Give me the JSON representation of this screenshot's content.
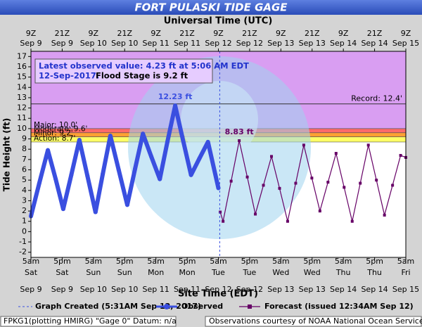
{
  "chart_data": {
    "type": "line",
    "title": "FORT PULASKI TIDE GAGE",
    "top_axis_label": "Universal Time (UTC)",
    "x_label": "Site Time (EDT)",
    "y_label": "Tide Height (ft)",
    "xlim": [
      0,
      144
    ],
    "ylim": [
      -2.5,
      17.5
    ],
    "yticks": [
      -2,
      -1,
      0,
      1,
      2,
      3,
      4,
      5,
      6,
      7,
      8,
      9,
      10,
      11,
      12,
      13,
      14,
      15,
      16,
      17
    ],
    "xticks": [
      {
        "value": 0,
        "label": [
          "5am",
          "Sat",
          "Sep 9"
        ]
      },
      {
        "value": 12,
        "label": [
          "5pm",
          "Sat",
          "Sep 9"
        ]
      },
      {
        "value": 24,
        "label": [
          "5am",
          "Sun",
          "Sep 10"
        ]
      },
      {
        "value": 36,
        "label": [
          "5pm",
          "Sun",
          "Sep 10"
        ]
      },
      {
        "value": 48,
        "label": [
          "5am",
          "Mon",
          "Sep 11"
        ]
      },
      {
        "value": 60,
        "label": [
          "5pm",
          "Mon",
          "Sep 11"
        ]
      },
      {
        "value": 72,
        "label": [
          "5am",
          "Tue",
          "Sep 12"
        ]
      },
      {
        "value": 84,
        "label": [
          "5pm",
          "Tue",
          "Sep 12"
        ]
      },
      {
        "value": 96,
        "label": [
          "5am",
          "Wed",
          "Sep 13"
        ]
      },
      {
        "value": 108,
        "label": [
          "5pm",
          "Wed",
          "Sep 13"
        ]
      },
      {
        "value": 120,
        "label": [
          "5am",
          "Thu",
          "Sep 14"
        ]
      },
      {
        "value": 132,
        "label": [
          "5pm",
          "Thu",
          "Sep 14"
        ]
      },
      {
        "value": 144,
        "label": [
          "5am",
          "Fri",
          "Sep 15"
        ]
      }
    ],
    "top_xticks": [
      {
        "value": 0,
        "label": [
          "9Z",
          "Sep 9"
        ]
      },
      {
        "value": 12,
        "label": [
          "21Z",
          "Sep 9"
        ]
      },
      {
        "value": 24,
        "label": [
          "9Z",
          "Sep 10"
        ]
      },
      {
        "value": 36,
        "label": [
          "21Z",
          "Sep 10"
        ]
      },
      {
        "value": 48,
        "label": [
          "9Z",
          "Sep 11"
        ]
      },
      {
        "value": 60,
        "label": [
          "21Z",
          "Sep 11"
        ]
      },
      {
        "value": 72,
        "label": [
          "9Z",
          "Sep 12"
        ]
      },
      {
        "value": 84,
        "label": [
          "21Z",
          "Sep 12"
        ]
      },
      {
        "value": 96,
        "label": [
          "9Z",
          "Sep 13"
        ]
      },
      {
        "value": 108,
        "label": [
          "21Z",
          "Sep 13"
        ]
      },
      {
        "value": 120,
        "label": [
          "9Z",
          "Sep 14"
        ]
      },
      {
        "value": 132,
        "label": [
          "21Z",
          "Sep 14"
        ]
      },
      {
        "value": 144,
        "label": [
          "9Z",
          "Sep 15"
        ]
      }
    ],
    "stages": [
      {
        "label": "Action: 8.7'",
        "value": 8.7,
        "color": "#ffff66"
      },
      {
        "label": "Minor: 9.2'",
        "value": 9.2,
        "color": "#ffa033"
      },
      {
        "label": "Moderate: 9.6'",
        "value": 9.6,
        "color": "#ff6a6a"
      },
      {
        "label": "Major: 10.0'",
        "value": 10.0,
        "color": "#d99ef2"
      }
    ],
    "record": {
      "label": "Record: 12.4'",
      "value": 12.4
    },
    "info": [
      "Latest observed value: 4.23 ft at 5:06 AM EDT",
      "12-Sep-2017.",
      "Flood Stage is 9.2 ft"
    ],
    "created": {
      "label": "Graph Created (5:31AM Sep 12, 2017)",
      "x": 72.52
    },
    "annotations": [
      {
        "text": "12.23 ft",
        "x": 55.4,
        "y": 12.23
      },
      {
        "text": "8.83 ft",
        "x": 80.0,
        "y": 8.83
      }
    ],
    "series": [
      {
        "name": "Observed",
        "color": "#3a4fe0",
        "marker": "dot",
        "x": [
          0,
          3.2,
          6.5,
          9.5,
          12.4,
          15.5,
          18.6,
          21.7,
          24.8,
          27.6,
          30.5,
          33.7,
          37.0,
          40.0,
          43.0,
          46.2,
          49.5,
          52.4,
          55.4,
          58.4,
          61.5,
          64.7,
          68.0,
          72.0
        ],
        "values": [
          1.5,
          4.7,
          7.9,
          5.1,
          2.2,
          5.5,
          8.9,
          5.4,
          1.9,
          5.6,
          9.3,
          6.0,
          2.6,
          6.1,
          9.5,
          7.3,
          5.1,
          8.7,
          12.23,
          8.9,
          5.5,
          7.1,
          8.7,
          4.23
        ]
      },
      {
        "name": "Forecast (issued 12:34AM Sep 12)",
        "color": "#660066",
        "marker": "square",
        "x": [
          72.7,
          73.8,
          76.9,
          80.0,
          83.1,
          86.2,
          89.3,
          92.4,
          95.5,
          98.6,
          101.7,
          104.8,
          107.9,
          111.0,
          114.1,
          117.2,
          120.3,
          123.4,
          126.5,
          129.6,
          132.7,
          135.8,
          138.9,
          142.0,
          144.0
        ],
        "values": [
          1.9,
          1.0,
          4.9,
          8.83,
          5.3,
          1.7,
          4.5,
          7.3,
          4.2,
          1.0,
          4.7,
          8.4,
          5.2,
          2.0,
          4.8,
          7.6,
          4.3,
          1.0,
          4.7,
          8.4,
          5.0,
          1.6,
          4.5,
          7.4,
          7.2
        ]
      }
    ],
    "footer_left": "FPKG1(plotting HMIRG) \"Gage 0\" Datum: n/a",
    "footer_right": "Observations courtesy of NOAA National Ocean Service"
  }
}
